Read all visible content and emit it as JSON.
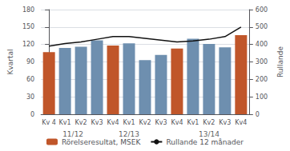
{
  "chart_data": {
    "type": "bar",
    "categories": [
      "Kv 4",
      "Kv1",
      "Kv2",
      "Kv3",
      "Kv4",
      "Kv1",
      "Kv2",
      "Kv3",
      "Kv4",
      "Kv1",
      "Kv2",
      "Kv3",
      "Kv4"
    ],
    "series": [
      {
        "name": "Rörelseresultat, MSEK",
        "type": "bar",
        "color": "#c0562a",
        "colors": [
          "#c0562a",
          "#6e8faf",
          "#6e8faf",
          "#6e8faf",
          "#c0562a",
          "#6e8faf",
          "#6e8faf",
          "#6e8faf",
          "#c0562a",
          "#6e8faf",
          "#6e8faf",
          "#6e8faf",
          "#c0562a"
        ],
        "values": [
          107,
          114,
          116,
          127,
          118,
          122,
          93,
          102,
          113,
          130,
          121,
          115,
          136
        ]
      },
      {
        "name": "Rullande 12 månader",
        "type": "line",
        "axis": "y2",
        "color": "#111111",
        "values": [
          390,
          405,
          415,
          430,
          445,
          445,
          435,
          425,
          415,
          420,
          430,
          445,
          500
        ]
      }
    ],
    "ylabel": "Kvartal",
    "y2label": "Rullande",
    "ylim": [
      0,
      180
    ],
    "yticks": [
      0,
      30,
      60,
      90,
      120,
      150,
      180
    ],
    "y2lim": [
      0,
      600
    ],
    "y2ticks": [
      0,
      100,
      200,
      300,
      400,
      500,
      600
    ],
    "grid": true,
    "legend": "bottom",
    "annotations": [
      {
        "text": "11/12",
        "x": 1.5
      },
      {
        "text": "12/13",
        "x": 5.0
      },
      {
        "text": "13/14",
        "x": 10.0
      }
    ]
  }
}
